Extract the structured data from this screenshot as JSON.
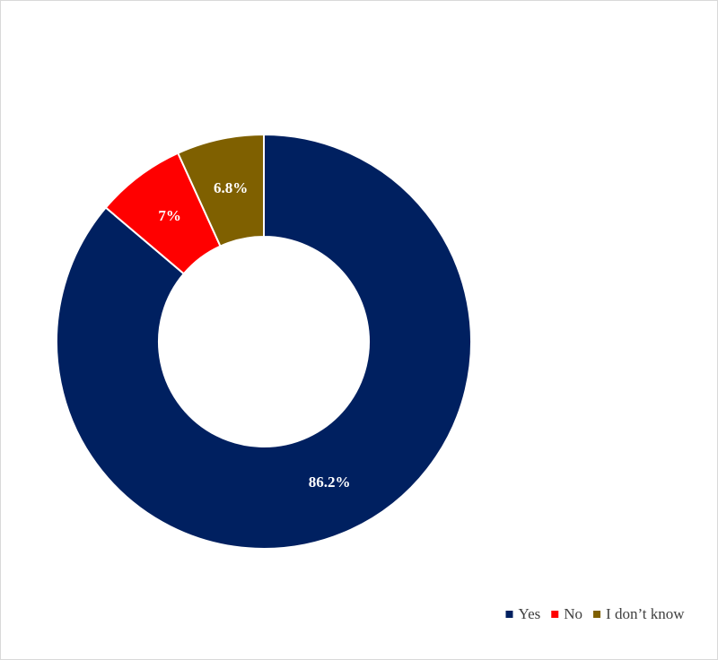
{
  "chart_data": {
    "type": "donut",
    "categories": [
      "Yes",
      "No",
      "I don’t know"
    ],
    "values": [
      86.2,
      7,
      6.8
    ],
    "value_labels": [
      "86.2%",
      "7%",
      "6.8%"
    ],
    "colors": [
      "#002060",
      "#ff0000",
      "#7f6000"
    ],
    "legend": "bottom-right"
  }
}
